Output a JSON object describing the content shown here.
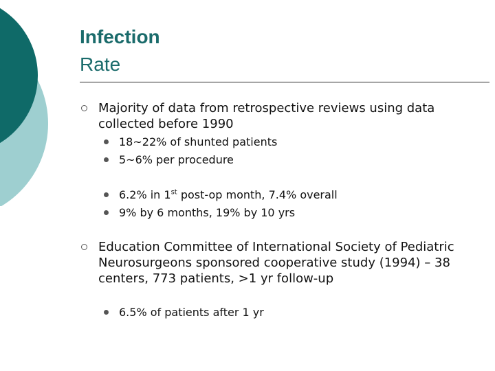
{
  "slide": {
    "title_line1": "Infection",
    "title_line2": "Rate"
  },
  "bullets": {
    "b1_text": "Majority of data from retrospective reviews using data collected before 1990",
    "b1_sub1": "18~22% of shunted patients",
    "b1_sub2": "5~6% per procedure",
    "b1_sub3_a": "6.2% in 1",
    "b1_sub3_sup": "st",
    "b1_sub3_b": " post-op month, 7.4% overall",
    "b1_sub4": "9% by 6 months, 19% by 10 yrs",
    "b2_text": "Education Committee of International Society of Pediatric Neurosurgeons sponsored cooperative study (1994) – 38 centers, 773 patients, >1 yr follow-up",
    "b2_sub1": "6.5% of patients after 1 yr"
  },
  "colors": {
    "title": "#1a6b6b",
    "deco_dark": "#0f6a68",
    "deco_light": "#9ecfd0"
  }
}
